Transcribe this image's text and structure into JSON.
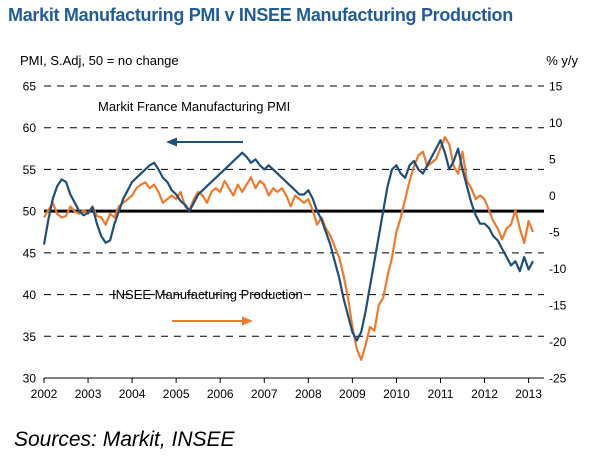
{
  "title": "Markit Manufacturing PMI v INSEE Manufacturing Production",
  "source": "Sources: Markit, INSEE",
  "chart_data": {
    "type": "line",
    "left_axis": {
      "label": "PMI, S.Adj, 50 = no change",
      "ylim": [
        30,
        65
      ],
      "ticks": [
        "30",
        "35",
        "40",
        "45",
        "50",
        "55",
        "60",
        "65"
      ]
    },
    "right_axis": {
      "label": "% y/y",
      "ylim": [
        -25,
        15
      ],
      "ticks": [
        "-25",
        "-20",
        "-15",
        "-10",
        "-5",
        "0",
        "5",
        "10",
        "15"
      ]
    },
    "x": {
      "xlim": [
        2002,
        2013.35
      ],
      "ticks": [
        "2002",
        "2003",
        "2004",
        "2005",
        "2006",
        "2007",
        "2008",
        "2009",
        "2010",
        "2011",
        "2012",
        "2013"
      ]
    },
    "grid": "dashed horizontal",
    "reference_line": 50,
    "series": [
      {
        "name": "Markit France Manufacturing PMI",
        "axis": "left",
        "color": "#1f4e79",
        "points": [
          [
            2002.0,
            46
          ],
          [
            2002.1,
            49
          ],
          [
            2002.2,
            51.5
          ],
          [
            2002.3,
            53
          ],
          [
            2002.4,
            53.8
          ],
          [
            2002.5,
            53.5
          ],
          [
            2002.6,
            52
          ],
          [
            2002.7,
            51
          ],
          [
            2002.8,
            50
          ],
          [
            2002.9,
            49.5
          ],
          [
            2003.0,
            49.8
          ],
          [
            2003.1,
            50.5
          ],
          [
            2003.2,
            48.5
          ],
          [
            2003.3,
            47
          ],
          [
            2003.4,
            46.2
          ],
          [
            2003.5,
            46.5
          ],
          [
            2003.6,
            48.5
          ],
          [
            2003.7,
            50
          ],
          [
            2003.8,
            51.5
          ],
          [
            2003.9,
            52.5
          ],
          [
            2004.0,
            53.5
          ],
          [
            2004.1,
            54
          ],
          [
            2004.2,
            54.5
          ],
          [
            2004.3,
            55
          ],
          [
            2004.4,
            55.5
          ],
          [
            2004.5,
            55.8
          ],
          [
            2004.6,
            55
          ],
          [
            2004.7,
            54
          ],
          [
            2004.8,
            53.5
          ],
          [
            2004.9,
            52.5
          ],
          [
            2005.0,
            52
          ],
          [
            2005.1,
            51.2
          ],
          [
            2005.2,
            50.8
          ],
          [
            2005.3,
            50
          ],
          [
            2005.4,
            51
          ],
          [
            2005.5,
            52
          ],
          [
            2005.6,
            52.5
          ],
          [
            2005.7,
            53
          ],
          [
            2005.8,
            53.5
          ],
          [
            2005.9,
            54
          ],
          [
            2006.0,
            54.5
          ],
          [
            2006.1,
            55
          ],
          [
            2006.2,
            55.5
          ],
          [
            2006.3,
            56
          ],
          [
            2006.4,
            56.5
          ],
          [
            2006.5,
            57
          ],
          [
            2006.6,
            56.5
          ],
          [
            2006.7,
            55.8
          ],
          [
            2006.8,
            56.2
          ],
          [
            2006.9,
            55.5
          ],
          [
            2007.0,
            55
          ],
          [
            2007.1,
            55.5
          ],
          [
            2007.2,
            55
          ],
          [
            2007.3,
            54.5
          ],
          [
            2007.4,
            54
          ],
          [
            2007.5,
            53.5
          ],
          [
            2007.6,
            53
          ],
          [
            2007.7,
            52.5
          ],
          [
            2007.8,
            52
          ],
          [
            2007.9,
            52
          ],
          [
            2008.0,
            52.5
          ],
          [
            2008.1,
            51.5
          ],
          [
            2008.2,
            50
          ],
          [
            2008.3,
            49
          ],
          [
            2008.4,
            47.5
          ],
          [
            2008.5,
            46
          ],
          [
            2008.6,
            44
          ],
          [
            2008.7,
            42
          ],
          [
            2008.8,
            39.5
          ],
          [
            2008.9,
            37.5
          ],
          [
            2009.0,
            35.5
          ],
          [
            2009.1,
            34.5
          ],
          [
            2009.2,
            35.5
          ],
          [
            2009.3,
            38
          ],
          [
            2009.4,
            41
          ],
          [
            2009.5,
            44
          ],
          [
            2009.6,
            47
          ],
          [
            2009.7,
            50
          ],
          [
            2009.8,
            53
          ],
          [
            2009.9,
            55
          ],
          [
            2010.0,
            55.5
          ],
          [
            2010.1,
            54.5
          ],
          [
            2010.2,
            54
          ],
          [
            2010.3,
            55.5
          ],
          [
            2010.4,
            56
          ],
          [
            2010.5,
            55
          ],
          [
            2010.6,
            54.5
          ],
          [
            2010.7,
            55.5
          ],
          [
            2010.8,
            56.5
          ],
          [
            2010.9,
            57.5
          ],
          [
            2011.0,
            58.5
          ],
          [
            2011.1,
            57
          ],
          [
            2011.2,
            55
          ],
          [
            2011.3,
            56
          ],
          [
            2011.4,
            57.5
          ],
          [
            2011.5,
            55
          ],
          [
            2011.6,
            53
          ],
          [
            2011.7,
            51
          ],
          [
            2011.8,
            49.5
          ],
          [
            2011.9,
            48.5
          ],
          [
            2012.0,
            48.5
          ],
          [
            2012.1,
            48
          ],
          [
            2012.2,
            47
          ],
          [
            2012.3,
            46.5
          ],
          [
            2012.4,
            45.5
          ],
          [
            2012.5,
            44.5
          ],
          [
            2012.6,
            43.5
          ],
          [
            2012.7,
            44
          ],
          [
            2012.8,
            42.8
          ],
          [
            2012.9,
            44.5
          ],
          [
            2013.0,
            43
          ],
          [
            2013.1,
            44
          ]
        ]
      },
      {
        "name": "INSEE Manufacturing Production",
        "axis": "right",
        "color": "#f0792b",
        "points": [
          [
            2002.0,
            -3
          ],
          [
            2002.1,
            -2
          ],
          [
            2002.2,
            -1
          ],
          [
            2002.3,
            -2.5
          ],
          [
            2002.4,
            -3
          ],
          [
            2002.5,
            -2.8
          ],
          [
            2002.6,
            -1.5
          ],
          [
            2002.7,
            -2.2
          ],
          [
            2002.8,
            -2.5
          ],
          [
            2002.9,
            -2
          ],
          [
            2003.0,
            -2.5
          ],
          [
            2003.1,
            -1.5
          ],
          [
            2003.2,
            -2.8
          ],
          [
            2003.3,
            -3
          ],
          [
            2003.4,
            -4
          ],
          [
            2003.5,
            -2.5
          ],
          [
            2003.6,
            -3
          ],
          [
            2003.7,
            -1.5
          ],
          [
            2003.8,
            -1
          ],
          [
            2003.9,
            -0.5
          ],
          [
            2004.0,
            0
          ],
          [
            2004.1,
            1
          ],
          [
            2004.2,
            1.5
          ],
          [
            2004.3,
            1.8
          ],
          [
            2004.4,
            1
          ],
          [
            2004.5,
            1.5
          ],
          [
            2004.6,
            0.5
          ],
          [
            2004.7,
            -1
          ],
          [
            2004.8,
            -0.5
          ],
          [
            2004.9,
            0
          ],
          [
            2005.0,
            -0.5
          ],
          [
            2005.1,
            0.5
          ],
          [
            2005.2,
            -1.5
          ],
          [
            2005.3,
            -2
          ],
          [
            2005.4,
            -0.5
          ],
          [
            2005.5,
            0.5
          ],
          [
            2005.6,
            0
          ],
          [
            2005.7,
            -1
          ],
          [
            2005.8,
            0.5
          ],
          [
            2005.9,
            1
          ],
          [
            2006.0,
            0.5
          ],
          [
            2006.1,
            2
          ],
          [
            2006.2,
            1
          ],
          [
            2006.3,
            0
          ],
          [
            2006.4,
            1.5
          ],
          [
            2006.5,
            0.5
          ],
          [
            2006.6,
            1.5
          ],
          [
            2006.7,
            2.5
          ],
          [
            2006.8,
            1
          ],
          [
            2006.9,
            2
          ],
          [
            2007.0,
            1.5
          ],
          [
            2007.1,
            0
          ],
          [
            2007.2,
            1
          ],
          [
            2007.3,
            0.5
          ],
          [
            2007.4,
            1
          ],
          [
            2007.5,
            0
          ],
          [
            2007.6,
            -1.5
          ],
          [
            2007.7,
            0
          ],
          [
            2007.8,
            -0.5
          ],
          [
            2007.9,
            -1
          ],
          [
            2008.0,
            -0.5
          ],
          [
            2008.1,
            -2
          ],
          [
            2008.2,
            -4
          ],
          [
            2008.3,
            -3
          ],
          [
            2008.4,
            -4.5
          ],
          [
            2008.5,
            -5.5
          ],
          [
            2008.6,
            -7
          ],
          [
            2008.7,
            -8.5
          ],
          [
            2008.8,
            -11
          ],
          [
            2008.9,
            -14
          ],
          [
            2009.0,
            -18
          ],
          [
            2009.1,
            -21
          ],
          [
            2009.2,
            -22.5
          ],
          [
            2009.3,
            -20.5
          ],
          [
            2009.4,
            -18
          ],
          [
            2009.5,
            -18.5
          ],
          [
            2009.6,
            -15
          ],
          [
            2009.7,
            -14
          ],
          [
            2009.8,
            -11
          ],
          [
            2009.9,
            -8.5
          ],
          [
            2010.0,
            -5
          ],
          [
            2010.1,
            -3
          ],
          [
            2010.2,
            -0.5
          ],
          [
            2010.3,
            2
          ],
          [
            2010.4,
            4
          ],
          [
            2010.5,
            5.5
          ],
          [
            2010.6,
            6
          ],
          [
            2010.7,
            4
          ],
          [
            2010.8,
            4.5
          ],
          [
            2010.9,
            5
          ],
          [
            2011.0,
            6.5
          ],
          [
            2011.1,
            8
          ],
          [
            2011.2,
            7
          ],
          [
            2011.3,
            4
          ],
          [
            2011.4,
            3
          ],
          [
            2011.5,
            6
          ],
          [
            2011.6,
            2
          ],
          [
            2011.7,
            1
          ],
          [
            2011.8,
            -0.5
          ],
          [
            2011.9,
            0
          ],
          [
            2012.0,
            -0.5
          ],
          [
            2012.1,
            -2
          ],
          [
            2012.2,
            -3.5
          ],
          [
            2012.3,
            -4.5
          ],
          [
            2012.4,
            -6
          ],
          [
            2012.5,
            -4.5
          ],
          [
            2012.6,
            -4
          ],
          [
            2012.7,
            -2
          ],
          [
            2012.8,
            -4.5
          ],
          [
            2012.9,
            -6.5
          ],
          [
            2013.0,
            -3.5
          ],
          [
            2013.1,
            -5
          ]
        ]
      }
    ],
    "annotations": [
      {
        "text": "Markit France Manufacturing PMI",
        "arrow": "left"
      },
      {
        "text": "INSEE Manufacturing Production",
        "arrow": "right"
      }
    ]
  }
}
